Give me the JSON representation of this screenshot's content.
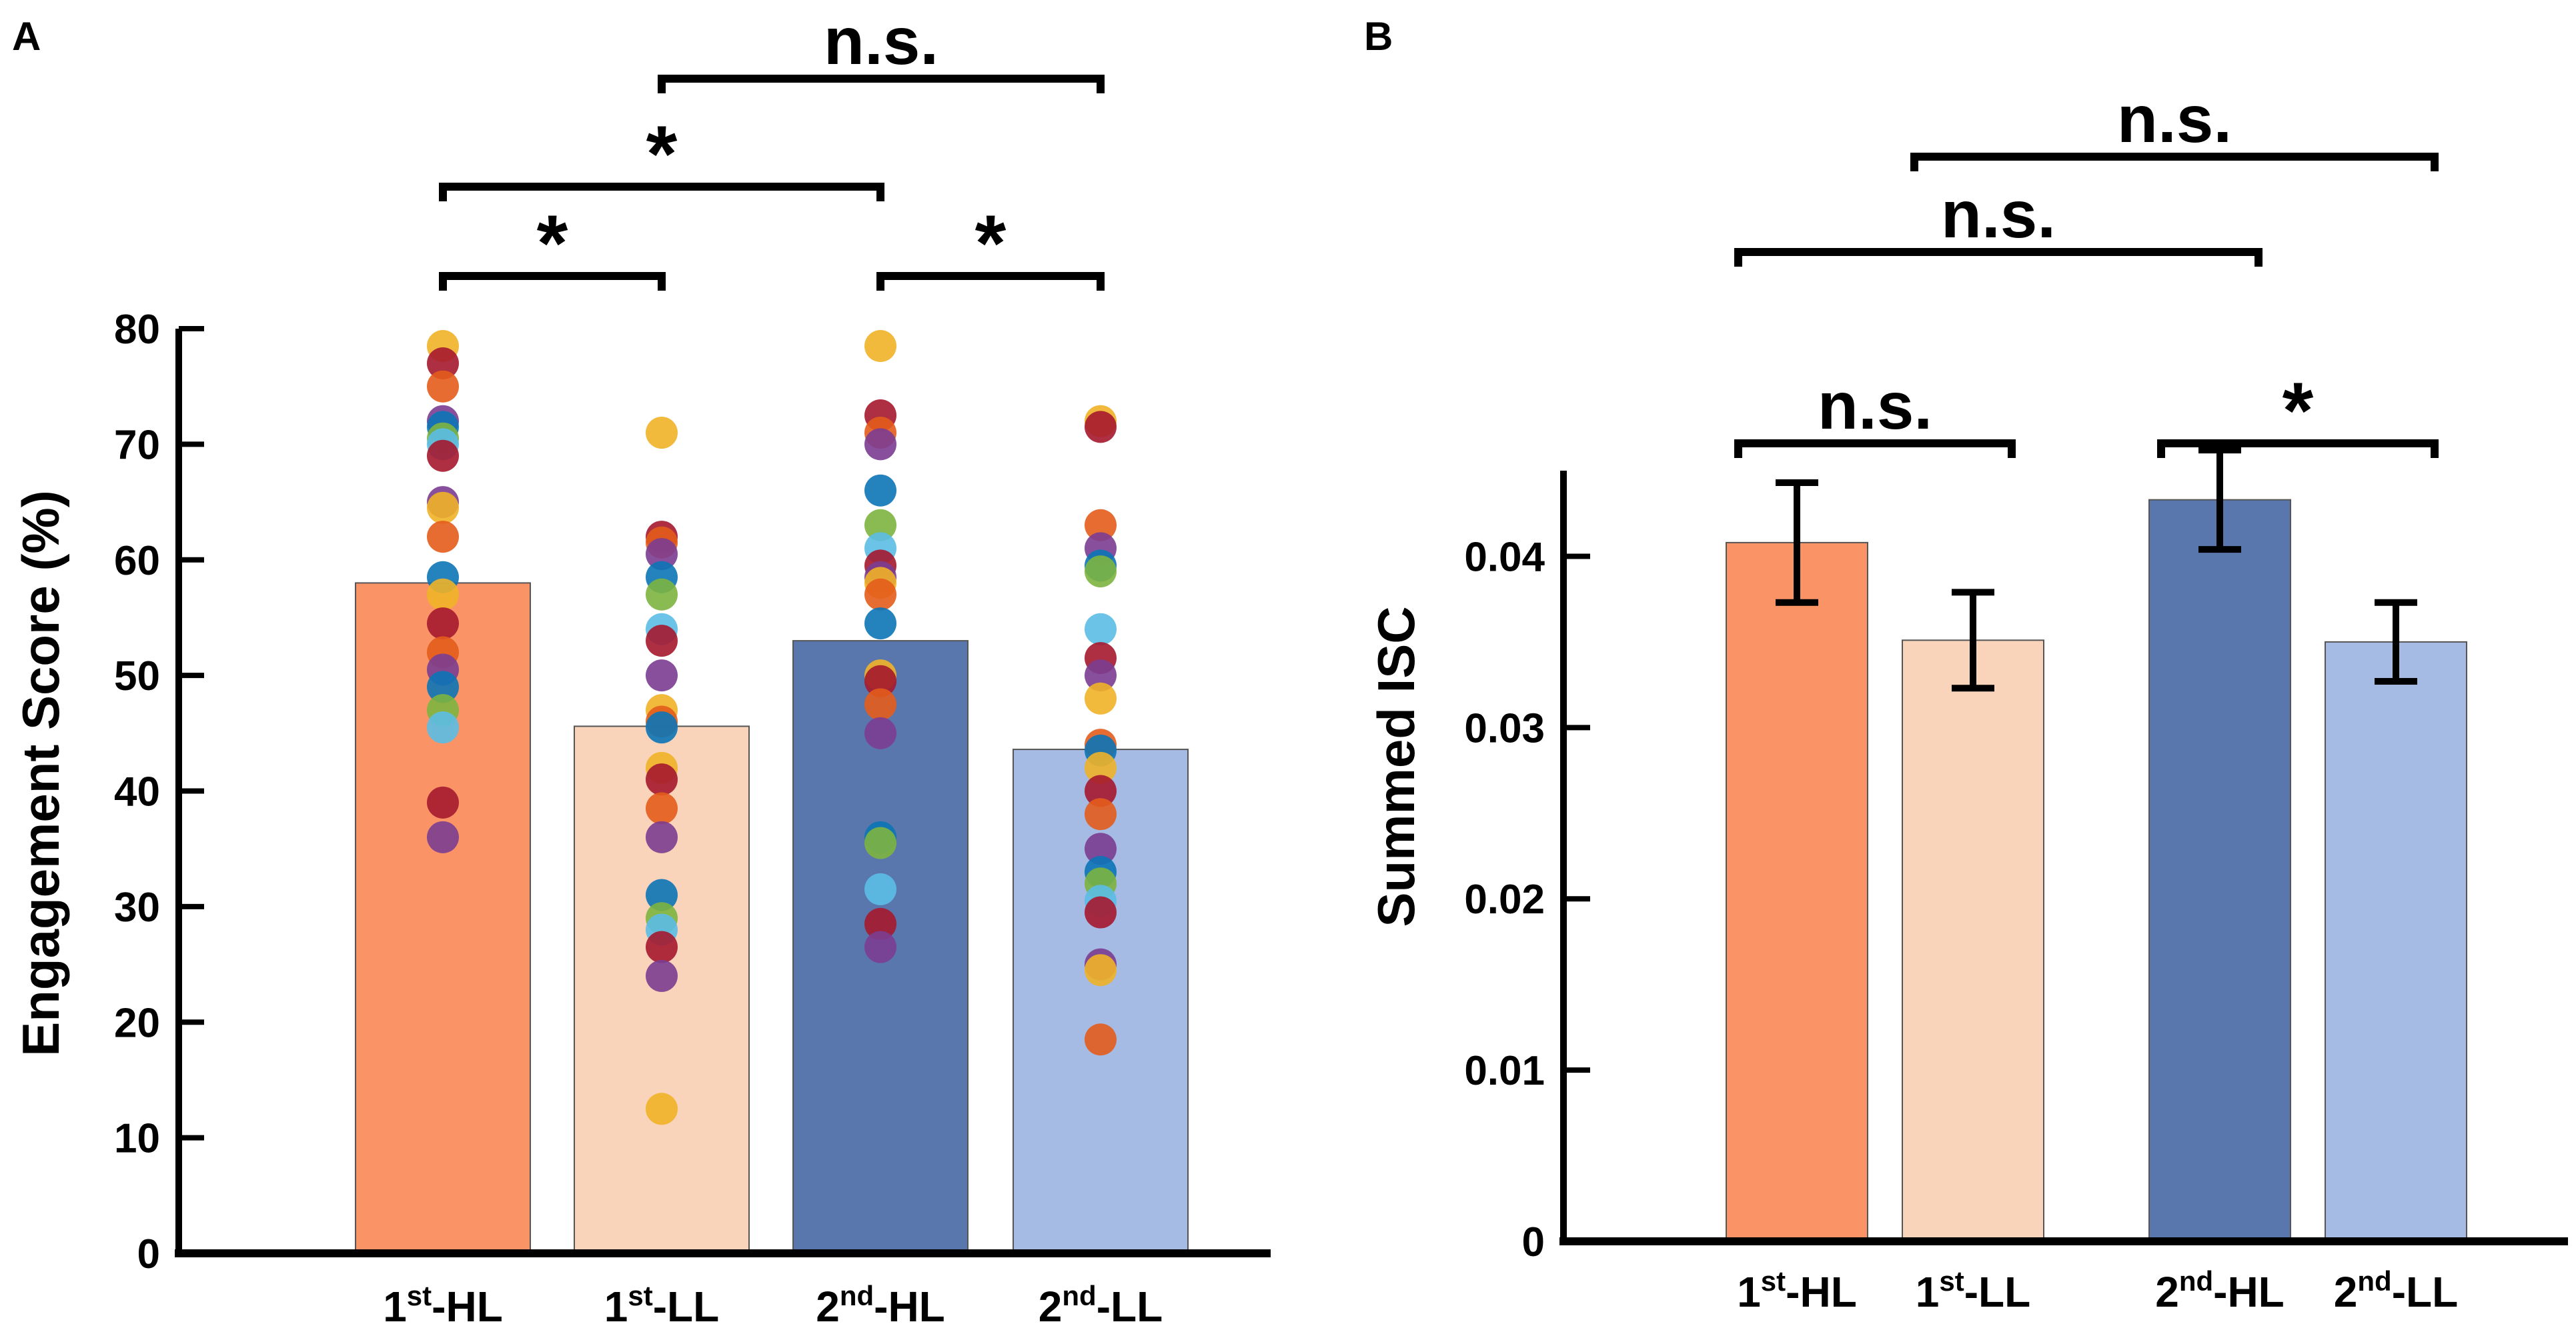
{
  "chart_data": [
    {
      "panel": "A",
      "type": "bar",
      "ylabel": "Engagement Score (%)",
      "ylim": [
        0,
        80
      ],
      "yticks": [
        "0",
        "10",
        "20",
        "30",
        "40",
        "50",
        "60",
        "70",
        "80"
      ],
      "categories": [
        {
          "base": "1",
          "sup": "st",
          "suffix": "-HL"
        },
        {
          "base": "1",
          "sup": "st",
          "suffix": "-LL"
        },
        {
          "base": "2",
          "sup": "nd",
          "suffix": "-HL"
        },
        {
          "base": "2",
          "sup": "nd",
          "suffix": "-LL"
        }
      ],
      "values": [
        58,
        45.6,
        53,
        43.6
      ],
      "colors": [
        "#fa9466",
        "#f9d4bb",
        "#5a77ad",
        "#a6bbe3"
      ],
      "points": [
        [
          78.5,
          77,
          75,
          72,
          71.5,
          70.5,
          70,
          69,
          65,
          64.5,
          62,
          58.5,
          57,
          54.5,
          52,
          50.5,
          49,
          47,
          45.5,
          39,
          36
        ],
        [
          71,
          62,
          61.5,
          60.5,
          58.5,
          57,
          54,
          53,
          50,
          47,
          46,
          45.5,
          42,
          41,
          38.5,
          36,
          31,
          29,
          28,
          26.5,
          24,
          12.5
        ],
        [
          78.5,
          72.5,
          71,
          70,
          66,
          63,
          61,
          59.5,
          58.5,
          58,
          57,
          54.5,
          50,
          49.5,
          47.5,
          45,
          36,
          35.5,
          31.5,
          28.5,
          26.5
        ],
        [
          72,
          71.5,
          63,
          61,
          59.5,
          59,
          54,
          51.5,
          50,
          48,
          44,
          43.5,
          42,
          40,
          38,
          35,
          33,
          32,
          30.5,
          29.5,
          25,
          24.5,
          18.5
        ]
      ],
      "point_colors": [
        "#f0b228",
        "#a5182e",
        "#e35c1c",
        "#7b3d91",
        "#0c74b6",
        "#7db440",
        "#5bbce6",
        "#a5182e",
        "#7b3d91",
        "#f0b228",
        "#e35c1c",
        "#0c74b6"
      ],
      "significance": [
        {
          "from": 0,
          "to": 1,
          "label": "*",
          "level": 1
        },
        {
          "from": 2,
          "to": 3,
          "label": "*",
          "level": 1
        },
        {
          "from": 0,
          "to": 2,
          "label": "*",
          "level": 2
        },
        {
          "from": 1,
          "to": 3,
          "label": "n.s.",
          "level": 3
        }
      ]
    },
    {
      "panel": "B",
      "type": "bar",
      "ylabel": "Summed ISC",
      "ylim": [
        0,
        0.045
      ],
      "yticks": [
        "0",
        "0.01",
        "0.02",
        "0.03",
        "0.04"
      ],
      "categories": [
        {
          "base": "1",
          "sup": "st",
          "suffix": "-HL"
        },
        {
          "base": "1",
          "sup": "st",
          "suffix": "-LL"
        },
        {
          "base": "2",
          "sup": "nd",
          "suffix": "-HL"
        },
        {
          "base": "2",
          "sup": "nd",
          "suffix": "-LL"
        }
      ],
      "values": [
        0.0408,
        0.0351,
        0.0433,
        0.035
      ],
      "errors": [
        0.0035,
        0.0028,
        0.0029,
        0.0023
      ],
      "colors": [
        "#fa9466",
        "#f9d4bb",
        "#5a77ad",
        "#a6bbe3"
      ],
      "significance": [
        {
          "from": 0,
          "to": 1,
          "label": "n.s.",
          "level": 1
        },
        {
          "from": 2,
          "to": 3,
          "label": "*",
          "level": 1
        },
        {
          "from": 0,
          "to": 2,
          "label": "n.s.",
          "level": 2
        },
        {
          "from": 1,
          "to": 3,
          "label": "n.s.",
          "level": 3
        }
      ]
    }
  ]
}
